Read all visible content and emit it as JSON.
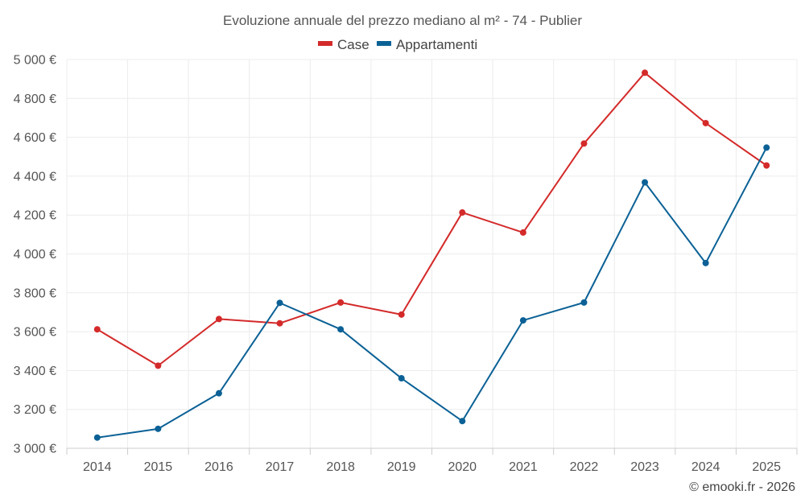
{
  "chart_data": {
    "type": "line",
    "title": "Evoluzione annuale del prezzo mediano al m² - 74 - Publier",
    "categories": [
      "2014",
      "2015",
      "2016",
      "2017",
      "2018",
      "2019",
      "2020",
      "2021",
      "2022",
      "2023",
      "2024",
      "2025"
    ],
    "series": [
      {
        "name": "Case",
        "color": "#d42a2a",
        "values": [
          3612,
          3425,
          3665,
          3643,
          3750,
          3688,
          4213,
          4110,
          4568,
          4932,
          4673,
          4455
        ]
      },
      {
        "name": "Appartamenti",
        "color": "#0b6196",
        "values": [
          3055,
          3100,
          3283,
          3748,
          3612,
          3360,
          3140,
          3658,
          3750,
          4368,
          3953,
          4547
        ]
      }
    ],
    "ylim": [
      3000,
      5000
    ],
    "yticks": [
      3000,
      3200,
      3400,
      3600,
      3800,
      4000,
      4200,
      4400,
      4600,
      4800,
      5000
    ],
    "ytick_labels": [
      "3 000 €",
      "3 200 €",
      "3 400 €",
      "3 600 €",
      "3 800 €",
      "4 000 €",
      "4 200 €",
      "4 400 €",
      "4 600 €",
      "4 800 €",
      "5 000 €"
    ],
    "xlabel": "",
    "ylabel": "",
    "grid": true,
    "legend_position": "top-center",
    "credit": "© emooki.fr - 2026"
  }
}
